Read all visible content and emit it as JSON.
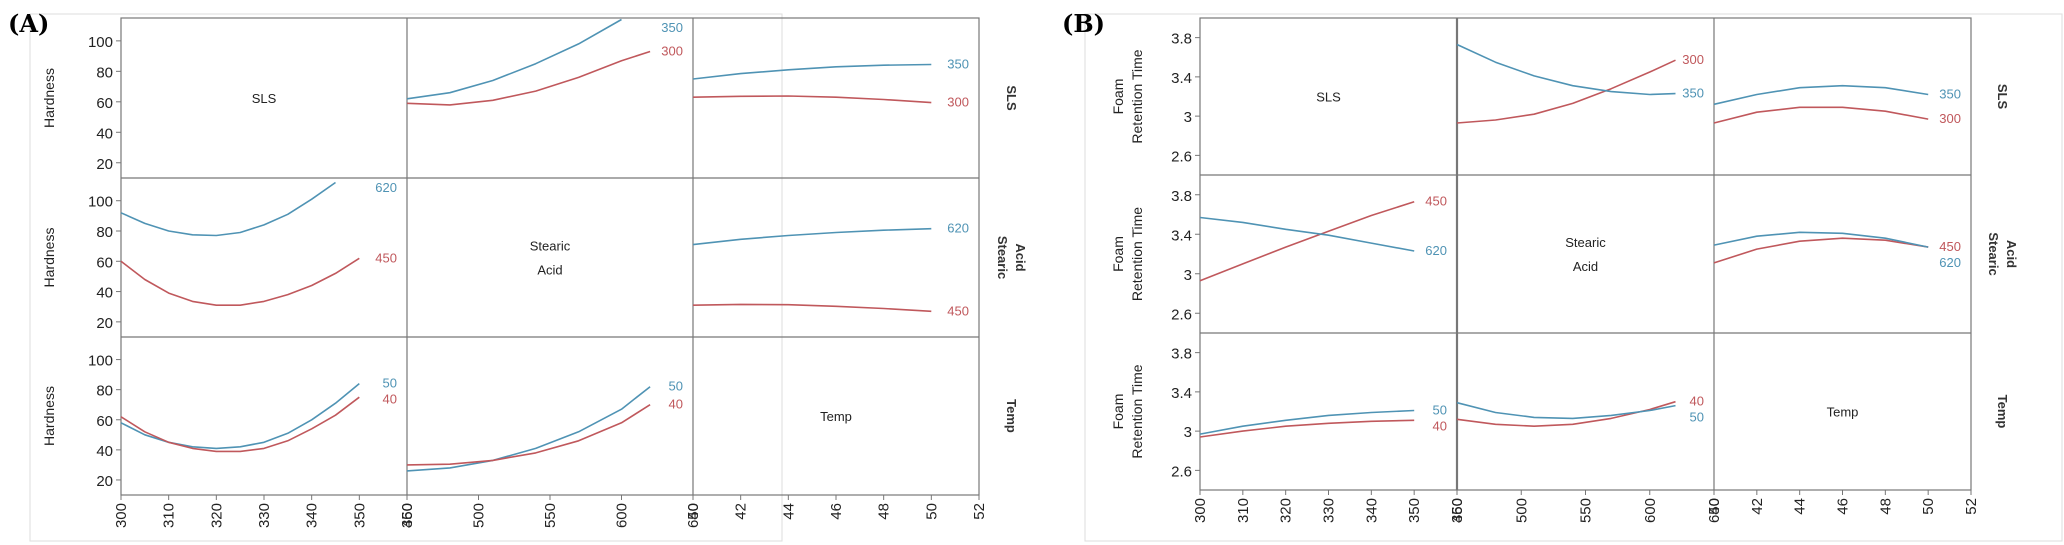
{
  "colors": {
    "blue": "#4f93b4",
    "red": "#c0585c",
    "frame": "#777777"
  },
  "chart_data": [
    {
      "panel_label": "(A)",
      "type": "line",
      "response_label": "Hardness",
      "factors": [
        "SLS",
        "Stearic Acid",
        "Temp"
      ],
      "factor_label_lines": [
        [
          "SLS"
        ],
        [
          "Stearic",
          "Acid"
        ],
        [
          "Temp"
        ]
      ],
      "row_side_labels": [
        [
          "SLS"
        ],
        [
          "Stearic",
          "Acid"
        ],
        [
          "Temp"
        ]
      ],
      "x_ticks": [
        [
          "300",
          "310",
          "320",
          "330",
          "340",
          "350",
          "360"
        ],
        [
          "450",
          "500",
          "550",
          "600",
          "650"
        ],
        [
          "40",
          "42",
          "44",
          "46",
          "48",
          "50",
          "52"
        ]
      ],
      "x_ranges": [
        [
          300,
          360
        ],
        [
          450,
          650
        ],
        [
          40,
          52
        ]
      ],
      "y_ticks": [
        [
          "20",
          "40",
          "60",
          "80",
          "100"
        ],
        [
          "20",
          "40",
          "60",
          "80",
          "100"
        ],
        [
          "20",
          "40",
          "60",
          "80",
          "100"
        ]
      ],
      "y_ranges": [
        [
          10,
          115
        ],
        [
          10,
          115
        ],
        [
          10,
          115
        ]
      ],
      "cells": [
        {
          "row": 0,
          "col": 1,
          "series": [
            {
              "name": "350",
              "color": "blue",
              "x": [
                450,
                480,
                510,
                540,
                570,
                600
              ],
              "y": [
                62,
                66,
                74,
                85,
                98,
                114
              ]
            },
            {
              "name": "300",
              "color": "red",
              "x": [
                450,
                480,
                510,
                540,
                570,
                600,
                620
              ],
              "y": [
                59,
                58,
                61,
                67,
                76,
                87,
                93
              ]
            }
          ]
        },
        {
          "row": 0,
          "col": 2,
          "series": [
            {
              "name": "350",
              "color": "blue",
              "x": [
                40,
                42,
                44,
                46,
                48,
                50
              ],
              "y": [
                75,
                78.5,
                81,
                83,
                84,
                84.5
              ]
            },
            {
              "name": "300",
              "color": "red",
              "x": [
                40,
                42,
                44,
                46,
                48,
                50
              ],
              "y": [
                63,
                63.6,
                63.8,
                63,
                61.5,
                59.5
              ]
            }
          ]
        },
        {
          "row": 1,
          "col": 0,
          "series": [
            {
              "name": "620",
              "color": "blue",
              "x": [
                300,
                305,
                310,
                315,
                320,
                325,
                330,
                335,
                340,
                345
              ],
              "y": [
                92,
                85,
                80,
                77.5,
                77,
                79,
                84,
                91,
                101,
                112
              ]
            },
            {
              "name": "450",
              "color": "red",
              "x": [
                300,
                305,
                310,
                315,
                320,
                325,
                330,
                335,
                340,
                345,
                350
              ],
              "y": [
                60,
                48,
                39,
                33.5,
                31,
                31,
                33.5,
                38,
                44,
                52,
                62
              ]
            }
          ]
        },
        {
          "row": 1,
          "col": 2,
          "series": [
            {
              "name": "620",
              "color": "blue",
              "x": [
                40,
                42,
                44,
                46,
                48,
                50
              ],
              "y": [
                71,
                74.5,
                77,
                79,
                80.5,
                81.5
              ]
            },
            {
              "name": "450",
              "color": "red",
              "x": [
                40,
                42,
                44,
                46,
                48,
                50
              ],
              "y": [
                31,
                31.5,
                31.3,
                30.3,
                28.8,
                27
              ]
            }
          ]
        },
        {
          "row": 2,
          "col": 0,
          "series": [
            {
              "name": "50",
              "color": "blue",
              "x": [
                300,
                305,
                310,
                315,
                320,
                325,
                330,
                335,
                340,
                345,
                350
              ],
              "y": [
                58,
                50,
                45,
                42,
                41,
                42,
                45,
                51,
                60,
                71,
                84
              ]
            },
            {
              "name": "40",
              "color": "red",
              "x": [
                300,
                305,
                310,
                315,
                320,
                325,
                330,
                335,
                340,
                345,
                350
              ],
              "y": [
                62,
                52,
                45,
                41,
                39,
                39,
                41,
                46,
                54,
                63,
                75
              ]
            }
          ]
        },
        {
          "row": 2,
          "col": 1,
          "series": [
            {
              "name": "50",
              "color": "blue",
              "x": [
                450,
                480,
                510,
                540,
                570,
                600,
                620
              ],
              "y": [
                26,
                28,
                33,
                41,
                52,
                67,
                82
              ]
            },
            {
              "name": "40",
              "color": "red",
              "x": [
                450,
                480,
                510,
                540,
                570,
                600,
                620
              ],
              "y": [
                30,
                30.5,
                33,
                38,
                46,
                58,
                70
              ]
            }
          ]
        }
      ]
    },
    {
      "panel_label": "(B)",
      "type": "line",
      "response_label": "Foam Retention Time",
      "response_label_lines": [
        "Foam",
        "Retention Time"
      ],
      "factors": [
        "SLS",
        "Stearic Acid",
        "Temp"
      ],
      "factor_label_lines": [
        [
          "SLS"
        ],
        [
          "Stearic",
          "Acid"
        ],
        [
          "Temp"
        ]
      ],
      "row_side_labels": [
        [
          "SLS"
        ],
        [
          "Stearic",
          "Acid"
        ],
        [
          "Temp"
        ]
      ],
      "x_ticks": [
        [
          "300",
          "310",
          "320",
          "330",
          "340",
          "350",
          "360"
        ],
        [
          "450",
          "500",
          "550",
          "600",
          "650"
        ],
        [
          "40",
          "42",
          "44",
          "46",
          "48",
          "50",
          "52"
        ]
      ],
      "x_ranges": [
        [
          300,
          360
        ],
        [
          450,
          650
        ],
        [
          40,
          52
        ]
      ],
      "y_ticks": [
        [
          "2.6",
          "3",
          "3.4",
          "3.8"
        ],
        [
          "2.6",
          "3",
          "3.4",
          "3.8"
        ],
        [
          "2.6",
          "3",
          "3.4",
          "3.8"
        ]
      ],
      "y_ranges": [
        [
          2.4,
          4.0
        ],
        [
          2.4,
          4.0
        ],
        [
          2.4,
          4.0
        ]
      ],
      "cells": [
        {
          "row": 0,
          "col": 1,
          "series": [
            {
              "name": "300",
              "color": "red",
              "x": [
                450,
                480,
                510,
                540,
                570,
                600,
                620
              ],
              "y": [
                2.93,
                2.96,
                3.02,
                3.13,
                3.28,
                3.45,
                3.57
              ]
            },
            {
              "name": "350",
              "color": "blue",
              "x": [
                450,
                480,
                510,
                540,
                570,
                600,
                620
              ],
              "y": [
                3.73,
                3.55,
                3.41,
                3.31,
                3.25,
                3.22,
                3.23
              ]
            }
          ]
        },
        {
          "row": 0,
          "col": 2,
          "series": [
            {
              "name": "350",
              "color": "blue",
              "x": [
                40,
                42,
                44,
                46,
                48,
                50
              ],
              "y": [
                3.12,
                3.22,
                3.29,
                3.31,
                3.29,
                3.22
              ]
            },
            {
              "name": "300",
              "color": "red",
              "x": [
                40,
                42,
                44,
                46,
                48,
                50
              ],
              "y": [
                2.93,
                3.04,
                3.09,
                3.09,
                3.05,
                2.97
              ]
            }
          ]
        },
        {
          "row": 1,
          "col": 0,
          "series": [
            {
              "name": "450",
              "color": "red",
              "x": [
                300,
                310,
                320,
                330,
                340,
                350
              ],
              "y": [
                2.93,
                3.1,
                3.27,
                3.43,
                3.59,
                3.73
              ]
            },
            {
              "name": "620",
              "color": "blue",
              "x": [
                300,
                310,
                320,
                330,
                340,
                350
              ],
              "y": [
                3.57,
                3.52,
                3.45,
                3.39,
                3.31,
                3.23
              ]
            }
          ]
        },
        {
          "row": 1,
          "col": 2,
          "series": [
            {
              "name": "450",
              "color": "red",
              "x": [
                40,
                42,
                44,
                46,
                48,
                50
              ],
              "y": [
                3.11,
                3.25,
                3.33,
                3.36,
                3.34,
                3.27
              ]
            },
            {
              "name": "620",
              "color": "blue",
              "x": [
                40,
                42,
                44,
                46,
                48,
                50
              ],
              "y": [
                3.29,
                3.38,
                3.42,
                3.41,
                3.36,
                3.27
              ]
            }
          ]
        },
        {
          "row": 2,
          "col": 0,
          "series": [
            {
              "name": "50",
              "color": "blue",
              "x": [
                300,
                310,
                320,
                330,
                340,
                350
              ],
              "y": [
                2.97,
                3.05,
                3.11,
                3.16,
                3.19,
                3.21
              ]
            },
            {
              "name": "40",
              "color": "red",
              "x": [
                300,
                310,
                320,
                330,
                340,
                350
              ],
              "y": [
                2.94,
                3.0,
                3.05,
                3.08,
                3.1,
                3.11
              ]
            }
          ]
        },
        {
          "row": 2,
          "col": 1,
          "series": [
            {
              "name": "40",
              "color": "red",
              "x": [
                450,
                480,
                510,
                540,
                570,
                600,
                620
              ],
              "y": [
                3.12,
                3.07,
                3.05,
                3.07,
                3.13,
                3.22,
                3.3
              ]
            },
            {
              "name": "50",
              "color": "blue",
              "x": [
                450,
                480,
                510,
                540,
                570,
                600,
                620
              ],
              "y": [
                3.29,
                3.19,
                3.14,
                3.13,
                3.16,
                3.21,
                3.26
              ]
            }
          ]
        }
      ]
    }
  ]
}
